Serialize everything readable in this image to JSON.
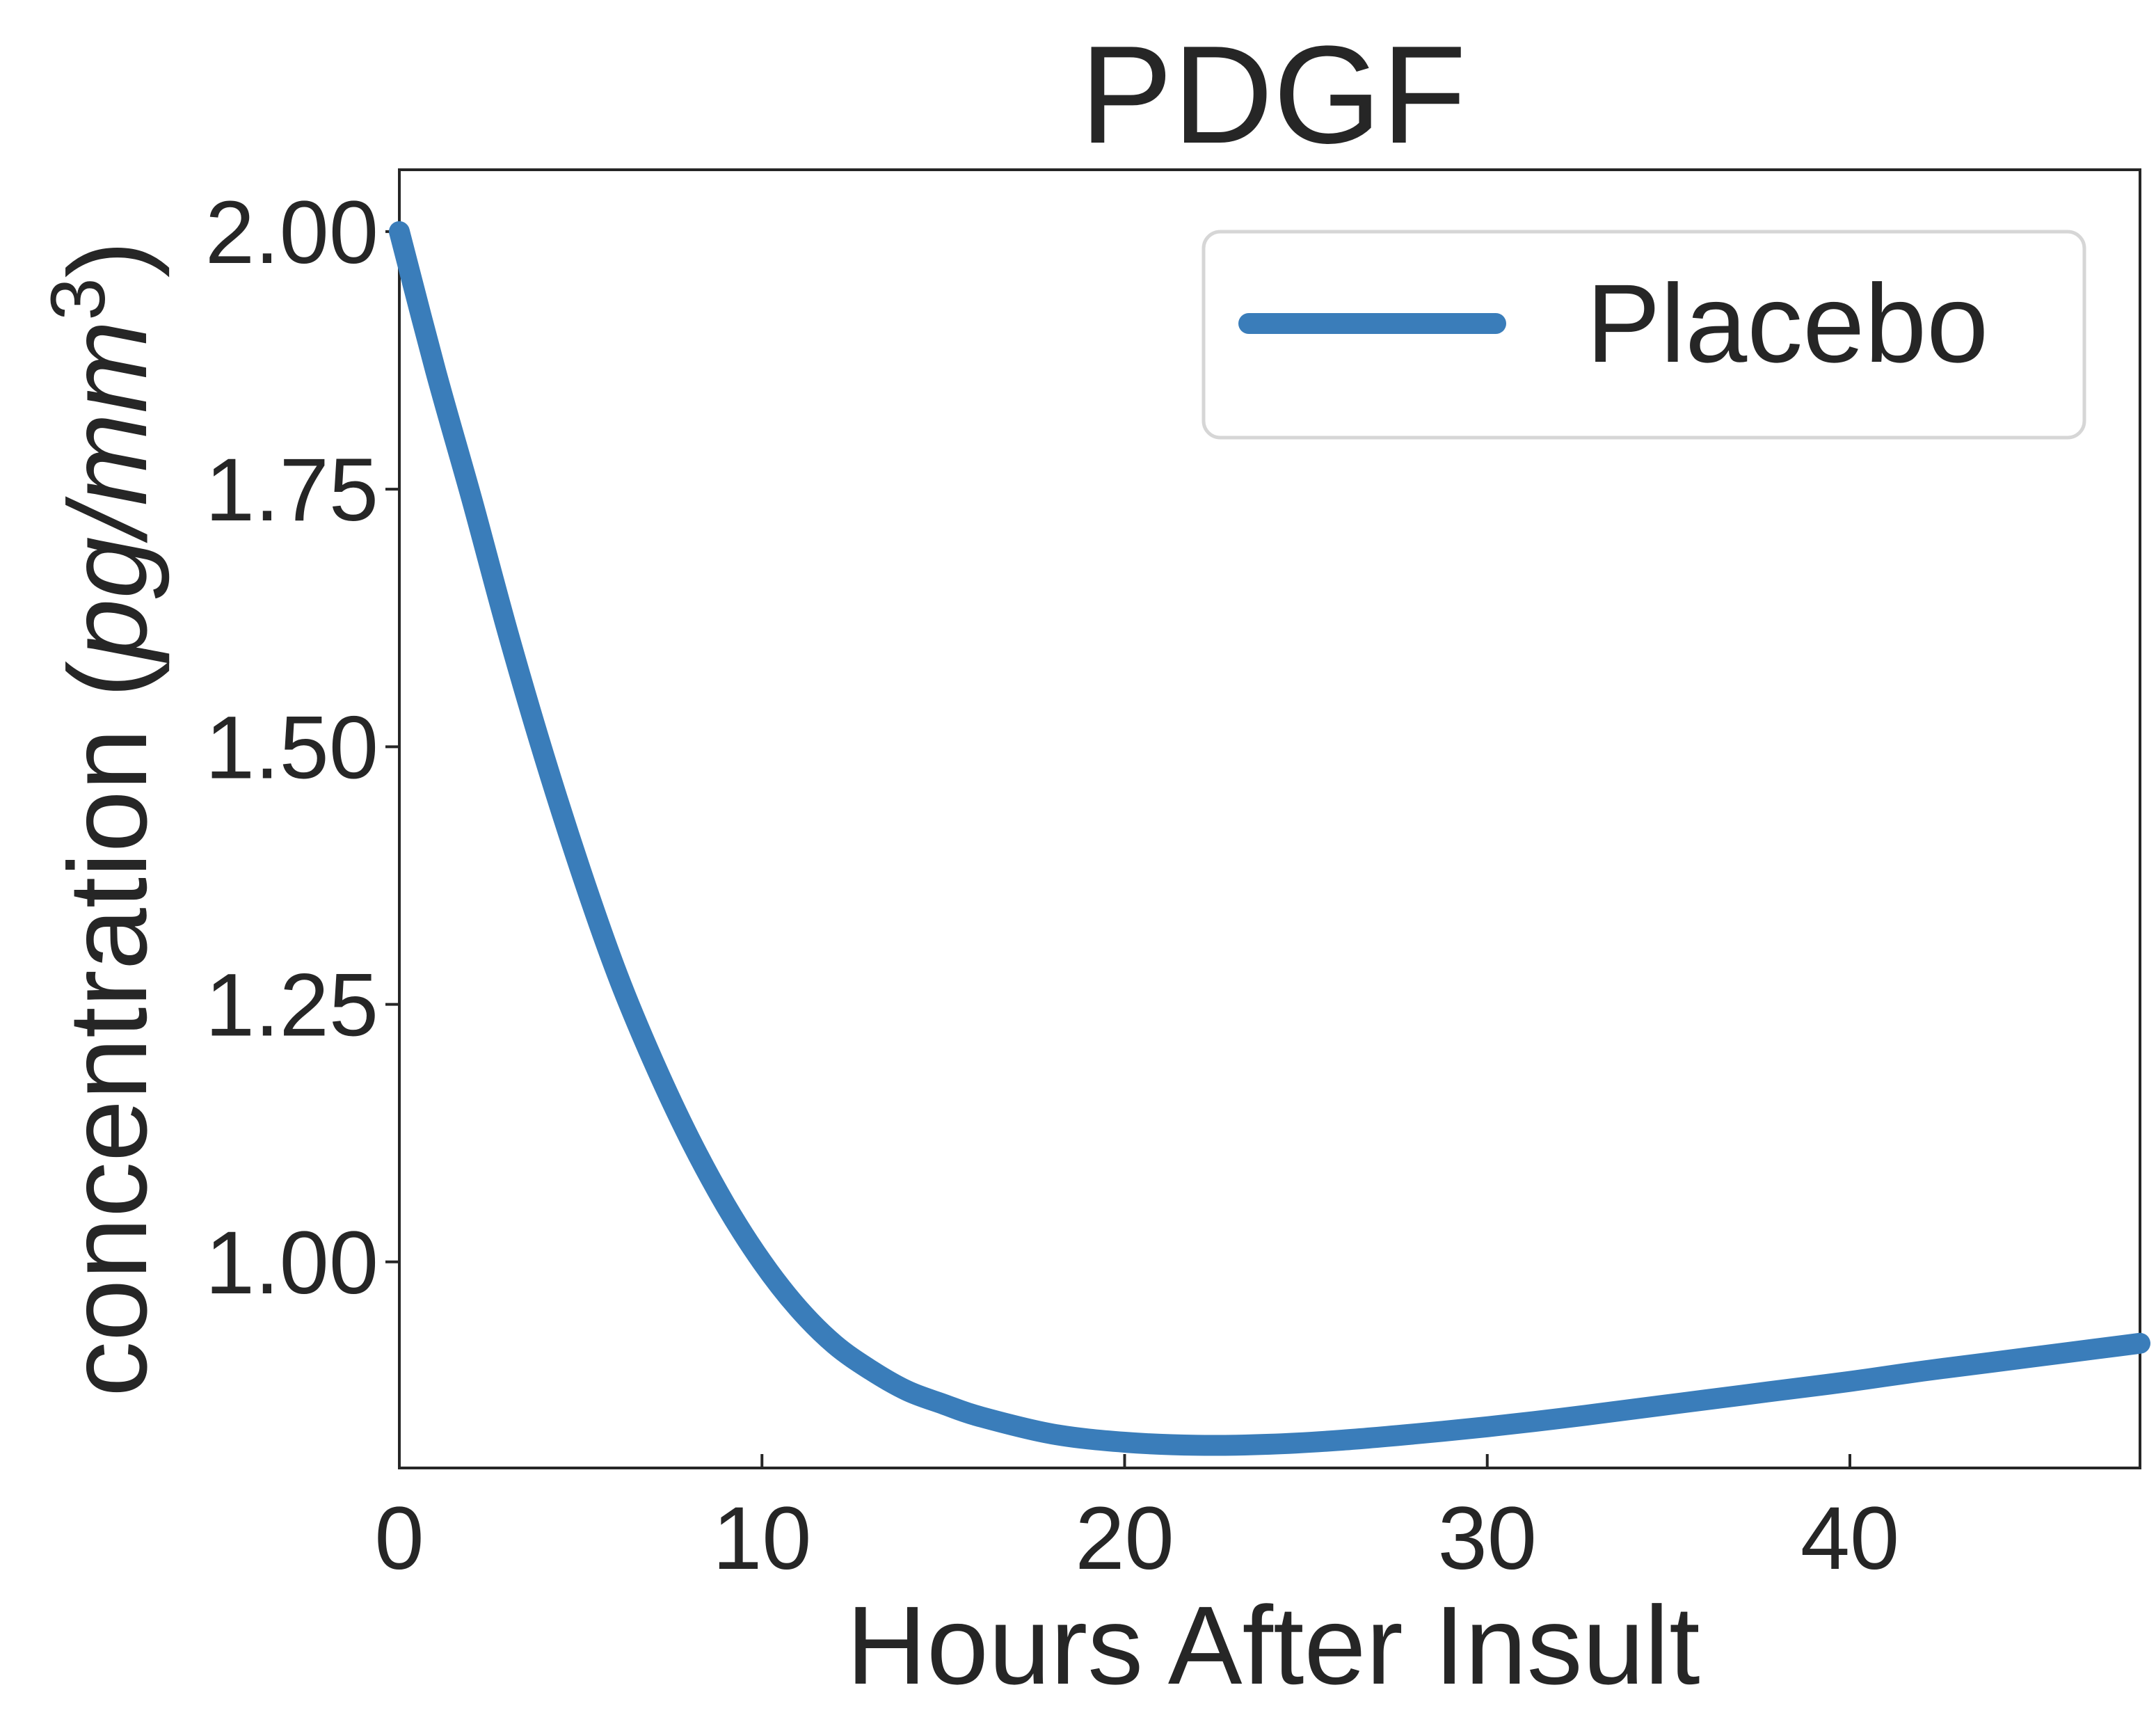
{
  "chart_data": {
    "type": "line",
    "title": "PDGF",
    "xlabel": "Hours After Insult",
    "ylabel_prefix": "concentration (",
    "ylabel_unit": "pg/mm",
    "ylabel_exponent": "3",
    "ylabel_suffix": ")",
    "xlim": [
      0,
      48
    ],
    "ylim": [
      0.8,
      2.06
    ],
    "xticks": [
      0,
      10,
      20,
      30,
      40
    ],
    "xtick_labels": [
      "0",
      "10",
      "20",
      "30",
      "40"
    ],
    "yticks": [
      1.0,
      1.25,
      1.5,
      1.75,
      2.0
    ],
    "ytick_labels": [
      "1.00",
      "1.25",
      "1.50",
      "1.75",
      "2.00"
    ],
    "grid": false,
    "legend_position": "top-right",
    "series": [
      {
        "name": "Placebo",
        "color": "#3a7dba",
        "x": [
          0,
          1,
          2,
          3,
          4,
          5,
          6,
          7,
          8,
          9,
          10,
          11,
          12,
          13,
          14,
          15,
          16,
          18,
          20,
          22,
          24,
          26,
          28,
          30,
          32,
          34,
          36,
          38,
          40,
          42,
          44,
          46,
          48
        ],
        "y": [
          2.0,
          1.865,
          1.74,
          1.61,
          1.49,
          1.38,
          1.28,
          1.195,
          1.12,
          1.055,
          1.0,
          0.955,
          0.92,
          0.895,
          0.875,
          0.862,
          0.85,
          0.833,
          0.825,
          0.822,
          0.823,
          0.827,
          0.833,
          0.84,
          0.848,
          0.857,
          0.866,
          0.875,
          0.884,
          0.894,
          0.903,
          0.912,
          0.921
        ]
      }
    ]
  }
}
